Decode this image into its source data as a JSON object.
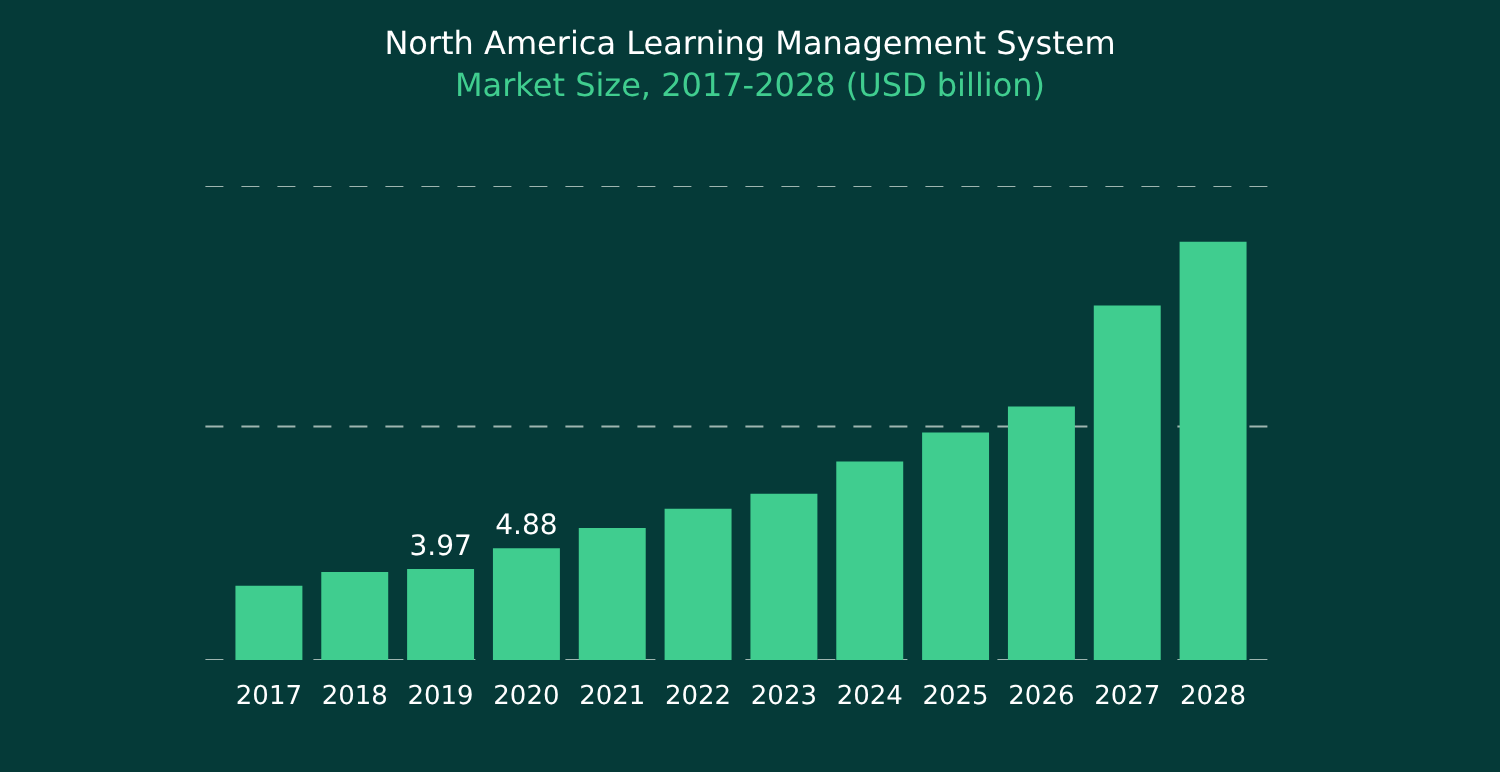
{
  "chart_data": {
    "type": "bar",
    "title": "North America Learning Management System",
    "subtitle": "Market Size, 2017-2028 (USD billion)",
    "categories": [
      "2017",
      "2018",
      "2019",
      "2020",
      "2021",
      "2022",
      "2023",
      "2024",
      "2025",
      "2026",
      "2027",
      "2028"
    ],
    "values": [
      3.24,
      3.84,
      3.97,
      4.88,
      5.76,
      6.6,
      7.26,
      8.67,
      9.93,
      11.07,
      15.48,
      18.27
    ],
    "value_labels": [
      null,
      null,
      "3.97",
      "4.88",
      null,
      null,
      null,
      null,
      null,
      null,
      null,
      null
    ],
    "color": "#40cd8f",
    "ylim": [
      0,
      20.7
    ],
    "tick_labels": "x",
    "ref_lines": [
      {
        "axis": "y",
        "value": 0,
        "color": "#9fb5b0",
        "line_style": "dashed"
      },
      {
        "axis": "y",
        "value": 10.2,
        "color": "#9fb5b0",
        "line_style": "dashed"
      },
      {
        "axis": "y",
        "value": 20.7,
        "color": "#9fb5b0",
        "line_style": "dashed"
      }
    ]
  }
}
